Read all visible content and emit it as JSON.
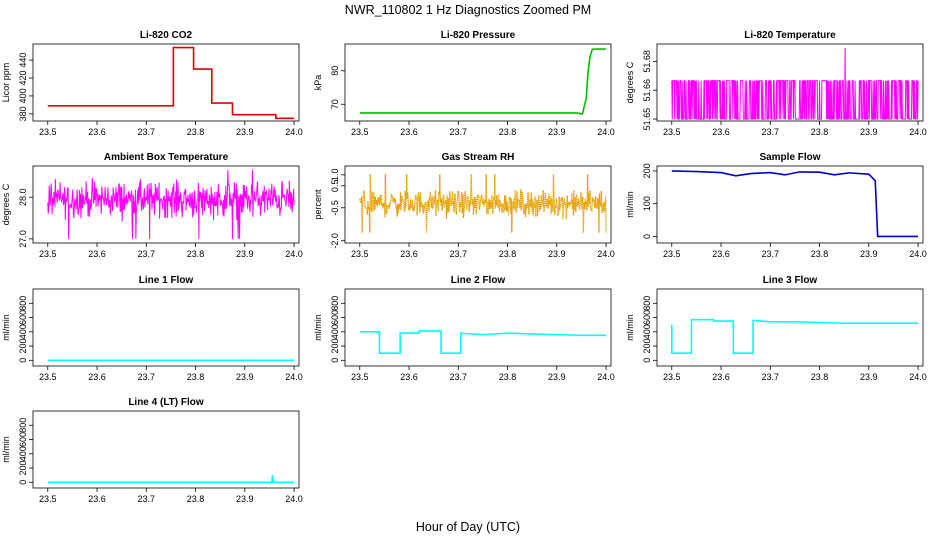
{
  "figure": {
    "title": "NWR_110802  1 Hz Diagnostics Zoomed PM",
    "xlabel": "Hour of Day (UTC)"
  },
  "chart_data": [
    {
      "id": "co2",
      "type": "line",
      "title": "Li-820 CO2",
      "ylabel": "Licor ppm",
      "color": "#e00000",
      "xlim": [
        23.47,
        24.01
      ],
      "ylim": [
        372,
        458
      ],
      "xticks": [
        "23.5",
        "23.6",
        "23.7",
        "23.8",
        "23.9",
        "24.0"
      ],
      "yticks": [
        {
          "v": 380,
          "label": "380"
        },
        {
          "v": 400,
          "label": "400"
        },
        {
          "v": 420,
          "label": "420"
        },
        {
          "v": 440,
          "label": "440"
        }
      ],
      "series": [
        {
          "name": "CO2",
          "x": [
            23.5,
            23.755,
            23.755,
            23.796,
            23.796,
            23.833,
            23.833,
            23.875,
            23.875,
            23.963,
            23.963,
            24.0
          ],
          "y": [
            389,
            389,
            454,
            454,
            430,
            430,
            392,
            392,
            379,
            379,
            375,
            375
          ]
        }
      ]
    },
    {
      "id": "pressure",
      "type": "line",
      "title": "Li-820 Pressure",
      "ylabel": "kPa",
      "color": "#00c000",
      "xlim": [
        23.47,
        24.01
      ],
      "ylim": [
        65,
        88
      ],
      "xticks": [
        "23.5",
        "23.6",
        "23.7",
        "23.8",
        "23.9",
        "24.0"
      ],
      "yticks": [
        {
          "v": 70,
          "label": "70"
        },
        {
          "v": 80,
          "label": "80"
        }
      ],
      "series": [
        {
          "name": "Pressure",
          "x": [
            23.5,
            23.94,
            23.952,
            23.96,
            23.963,
            23.967,
            23.972,
            23.977,
            24.0
          ],
          "y": [
            67.4,
            67.4,
            67.1,
            72,
            79,
            84,
            86.4,
            86.5,
            86.5
          ]
        }
      ]
    },
    {
      "id": "temp",
      "type": "line",
      "title": "Li-820 Temperature",
      "ylabel": "degrees C",
      "color": "#ff00ff",
      "xlim": [
        23.47,
        24.01
      ],
      "ylim": [
        51.649,
        51.689
      ],
      "xticks": [
        "23.5",
        "23.6",
        "23.7",
        "23.8",
        "23.9",
        "24.0"
      ],
      "yticks": [
        {
          "v": 51.65,
          "label": "51.65"
        },
        {
          "v": 51.665,
          "label": "51.66"
        },
        {
          "v": 51.68,
          "label": "51.68"
        }
      ],
      "noise": {
        "kind": "binary",
        "low": 51.65,
        "high": 51.67,
        "spike_x": 23.852,
        "spike_y": 51.687
      },
      "series": [
        {
          "name": "Li-820 Temperature"
        }
      ]
    },
    {
      "id": "ambient",
      "type": "line",
      "title": "Ambient Box Temperature",
      "ylabel": "degrees C",
      "color": "#ff00ff",
      "xlim": [
        23.47,
        24.01
      ],
      "ylim": [
        26.9,
        28.75
      ],
      "xticks": [
        "23.5",
        "23.6",
        "23.7",
        "23.8",
        "23.9",
        "24.0"
      ],
      "yticks": [
        {
          "v": 27.0,
          "label": "27.0"
        },
        {
          "v": 28.0,
          "label": "28.0"
        }
      ],
      "noise": {
        "kind": "random",
        "mean": 27.95,
        "spread": 0.28,
        "min": 27.0,
        "max": 28.65
      },
      "series": [
        {
          "name": "Ambient Box Temperature"
        }
      ]
    },
    {
      "id": "rh",
      "type": "scatter",
      "title": "Gas Stream RH",
      "ylabel": "percent",
      "color": "#e6a000",
      "xlim": [
        23.47,
        24.01
      ],
      "ylim": [
        -2.1,
        1.4
      ],
      "xticks": [
        "23.5",
        "23.6",
        "23.7",
        "23.8",
        "23.9",
        "24.0"
      ],
      "yticks": [
        {
          "v": -2.0,
          "label": "-2.0"
        },
        {
          "v": -0.5,
          "label": "-0.5"
        },
        {
          "v": 0.5,
          "label": "0.5"
        },
        {
          "v": 1.0,
          "label": "1.0"
        }
      ],
      "noise": {
        "kind": "random",
        "mean": -0.3,
        "spread": 0.38,
        "min": -1.95,
        "max": 1.15
      },
      "series": [
        {
          "name": "Gas Stream RH"
        }
      ]
    },
    {
      "id": "sample",
      "type": "line",
      "title": "Sample Flow",
      "ylabel": "ml/min",
      "color": "#0000cc",
      "xlim": [
        23.47,
        24.01
      ],
      "ylim": [
        -20,
        215
      ],
      "xticks": [
        "23.5",
        "23.6",
        "23.7",
        "23.8",
        "23.9",
        "24.0"
      ],
      "yticks": [
        {
          "v": 0,
          "label": "0"
        },
        {
          "v": 100,
          "label": "100"
        },
        {
          "v": 200,
          "label": "200"
        }
      ],
      "series": [
        {
          "name": "Sample Flow",
          "x": [
            23.5,
            23.55,
            23.6,
            23.63,
            23.66,
            23.7,
            23.73,
            23.76,
            23.8,
            23.83,
            23.86,
            23.9,
            23.913,
            23.918,
            23.925,
            24.0
          ],
          "y": [
            200,
            198,
            195,
            185,
            192,
            195,
            188,
            197,
            196,
            188,
            194,
            190,
            170,
            0,
            0,
            0
          ]
        }
      ]
    },
    {
      "id": "line1",
      "type": "line",
      "title": "Line 1 Flow",
      "ylabel": "ml/min",
      "color": "#00ffff",
      "xlim": [
        23.47,
        24.01
      ],
      "ylim": [
        -80,
        1000
      ],
      "xticks": [
        "23.5",
        "23.6",
        "23.7",
        "23.8",
        "23.9",
        "24.0"
      ],
      "yticks": [
        {
          "v": 0,
          "label": "0"
        },
        {
          "v": 200,
          "label": "200"
        },
        {
          "v": 400,
          "label": "400"
        },
        {
          "v": 600,
          "label": "600"
        },
        {
          "v": 800,
          "label": "800"
        }
      ],
      "series": [
        {
          "name": "Line 1 Flow",
          "x": [
            23.5,
            24.0
          ],
          "y": [
            0,
            0
          ]
        }
      ]
    },
    {
      "id": "line2",
      "type": "line",
      "title": "Line 2 Flow",
      "ylabel": "ml/min",
      "color": "#00ffff",
      "xlim": [
        23.47,
        24.01
      ],
      "ylim": [
        -80,
        1000
      ],
      "xticks": [
        "23.5",
        "23.6",
        "23.7",
        "23.8",
        "23.9",
        "24.0"
      ],
      "yticks": [
        {
          "v": 0,
          "label": "0"
        },
        {
          "v": 200,
          "label": "200"
        },
        {
          "v": 400,
          "label": "400"
        },
        {
          "v": 600,
          "label": "600"
        },
        {
          "v": 800,
          "label": "800"
        }
      ],
      "series": [
        {
          "name": "Line 2 Flow",
          "x": [
            23.5,
            23.54,
            23.54,
            23.582,
            23.582,
            23.62,
            23.62,
            23.665,
            23.665,
            23.705,
            23.705,
            23.75,
            23.8,
            23.85,
            23.9,
            23.95,
            24.0
          ],
          "y": [
            400,
            400,
            100,
            100,
            380,
            380,
            410,
            410,
            100,
            100,
            380,
            360,
            380,
            370,
            360,
            350,
            350
          ]
        }
      ]
    },
    {
      "id": "line3",
      "type": "line",
      "title": "Line 3 Flow",
      "ylabel": "ml/min",
      "color": "#00ffff",
      "xlim": [
        23.47,
        24.01
      ],
      "ylim": [
        -80,
        1000
      ],
      "xticks": [
        "23.5",
        "23.6",
        "23.7",
        "23.8",
        "23.9",
        "24.0"
      ],
      "yticks": [
        {
          "v": 0,
          "label": "0"
        },
        {
          "v": 200,
          "label": "200"
        },
        {
          "v": 400,
          "label": "400"
        },
        {
          "v": 600,
          "label": "600"
        },
        {
          "v": 800,
          "label": "800"
        }
      ],
      "series": [
        {
          "name": "Line 3 Flow",
          "x": [
            23.5,
            23.5,
            23.54,
            23.54,
            23.585,
            23.585,
            23.625,
            23.625,
            23.665,
            23.665,
            23.7,
            23.75,
            23.8,
            23.85,
            23.9,
            23.95,
            24.0
          ],
          "y": [
            500,
            100,
            100,
            570,
            570,
            550,
            550,
            100,
            100,
            560,
            540,
            540,
            530,
            520,
            520,
            520,
            520
          ]
        }
      ]
    },
    {
      "id": "line4",
      "type": "line",
      "title": "Line 4 (LT) Flow",
      "ylabel": "ml/min",
      "color": "#00ffff",
      "xlim": [
        23.47,
        24.01
      ],
      "ylim": [
        -80,
        1000
      ],
      "xticks": [
        "23.5",
        "23.6",
        "23.7",
        "23.8",
        "23.9",
        "24.0"
      ],
      "yticks": [
        {
          "v": 0,
          "label": "0"
        },
        {
          "v": 200,
          "label": "200"
        },
        {
          "v": 400,
          "label": "400"
        },
        {
          "v": 600,
          "label": "600"
        },
        {
          "v": 800,
          "label": "800"
        }
      ],
      "series": [
        {
          "name": "Line 4 Flow",
          "x": [
            23.5,
            23.955,
            23.956,
            23.958,
            24.0
          ],
          "y": [
            0,
            0,
            100,
            0,
            0
          ]
        }
      ]
    }
  ]
}
